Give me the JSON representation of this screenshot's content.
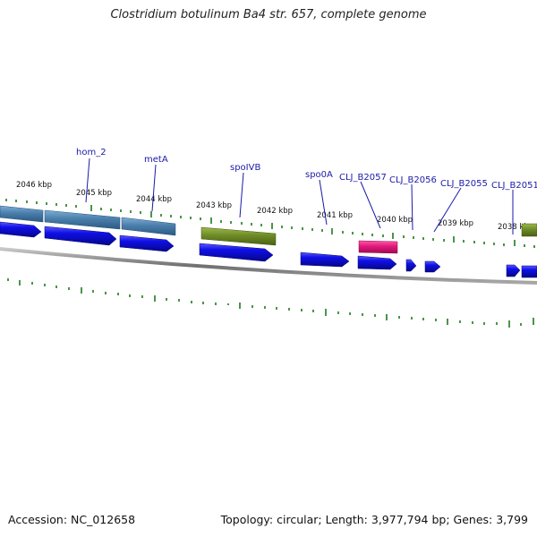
{
  "title": "Clostridium botulinum Ba4 str. 657, complete genome",
  "footer": {
    "accession": "Accession: NC_012658",
    "summary": "Topology: circular; Length: 3,977,794 bp; Genes: 3,799"
  },
  "colors": {
    "cds_blue": "#1010e8",
    "steel_blue": "#4a7eac",
    "olive": "#6e8c26",
    "magenta": "#e0187a",
    "tick_green": "#1e7a1e",
    "label_blue": "#1a1aa8",
    "backbone": "#808080"
  },
  "tick_labels": [
    "2046 kbp",
    "2045 kbp",
    "2044 kbp",
    "2043 kbp",
    "2042 kbp",
    "2041 kbp",
    "2040 kbp",
    "2039 kbp",
    "2038 kbp"
  ],
  "gene_labels": [
    "hom_2",
    "metA",
    "spoIVB",
    "spo0A",
    "CLJ_B2057",
    "CLJ_B2056",
    "CLJ_B2055",
    "CLJ_B2051"
  ]
}
